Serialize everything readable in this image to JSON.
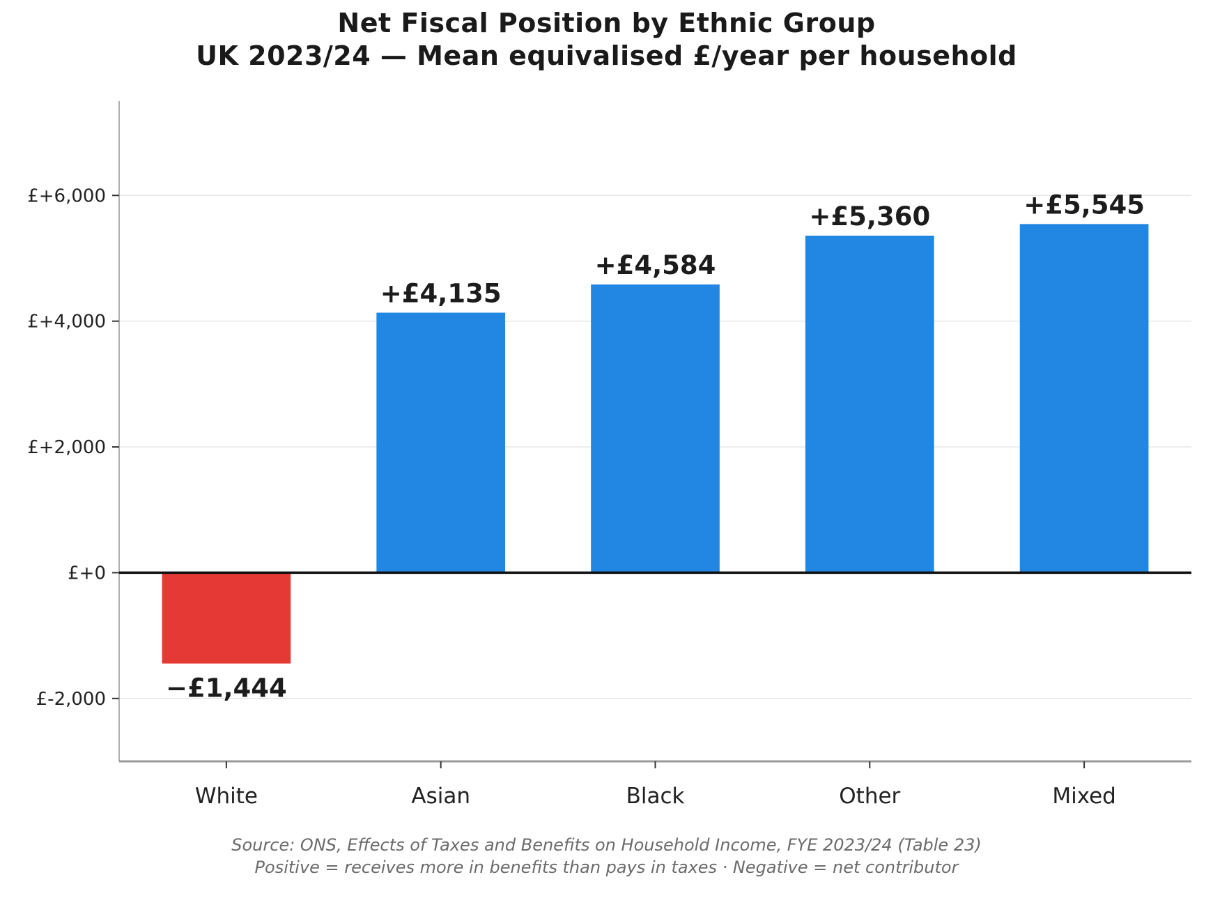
{
  "title": {
    "line1": "Net Fiscal Position by Ethnic Group",
    "line2": "UK 2023/24 — Mean equivalised £/year per household"
  },
  "footer": {
    "line1": "Source: ONS, Effects of Taxes and Benefits on Household Income, FYE 2023/24 (Table 23)",
    "line2": "Positive = receives more in benefits than pays in taxes · Negative = net contributor"
  },
  "colors": {
    "positive_bar": "#2187e3",
    "negative_bar": "#e53935",
    "grid": "#e7e7e7",
    "left_spine": "#b0b0b0",
    "bottom_spine": "#9a9a9a",
    "zero_line": "#111111",
    "tick_mark": "#333333",
    "tick_label": "#222222",
    "data_label": "#1c1c1c",
    "title_text": "#1a1a1a",
    "footer_text": "#6b6b6b"
  },
  "chart_data": {
    "type": "bar",
    "title": "Net Fiscal Position by Ethnic Group",
    "subtitle": "UK 2023/24 — Mean equivalised £/year per household",
    "categories": [
      "White",
      "Asian",
      "Black",
      "Other",
      "Mixed"
    ],
    "values": [
      -1444,
      4135,
      4584,
      5360,
      5545
    ],
    "bar_labels": [
      "−£1,444",
      "+£4,135",
      "+£4,584",
      "+£5,360",
      "+£5,545"
    ],
    "bar_colors": [
      "#e53935",
      "#2187e3",
      "#2187e3",
      "#2187e3",
      "#2187e3"
    ],
    "xlabel": "",
    "ylabel": "",
    "ylim": [
      -3000,
      7500
    ],
    "yticks": [
      {
        "value": -2000,
        "label": "£-2,000"
      },
      {
        "value": 0,
        "label": "£+0"
      },
      {
        "value": 2000,
        "label": "£+2,000"
      },
      {
        "value": 4000,
        "label": "£+4,000"
      },
      {
        "value": 6000,
        "label": "£+6,000"
      }
    ],
    "grid": "horizontal",
    "legend": "none",
    "zero_baseline": true
  }
}
